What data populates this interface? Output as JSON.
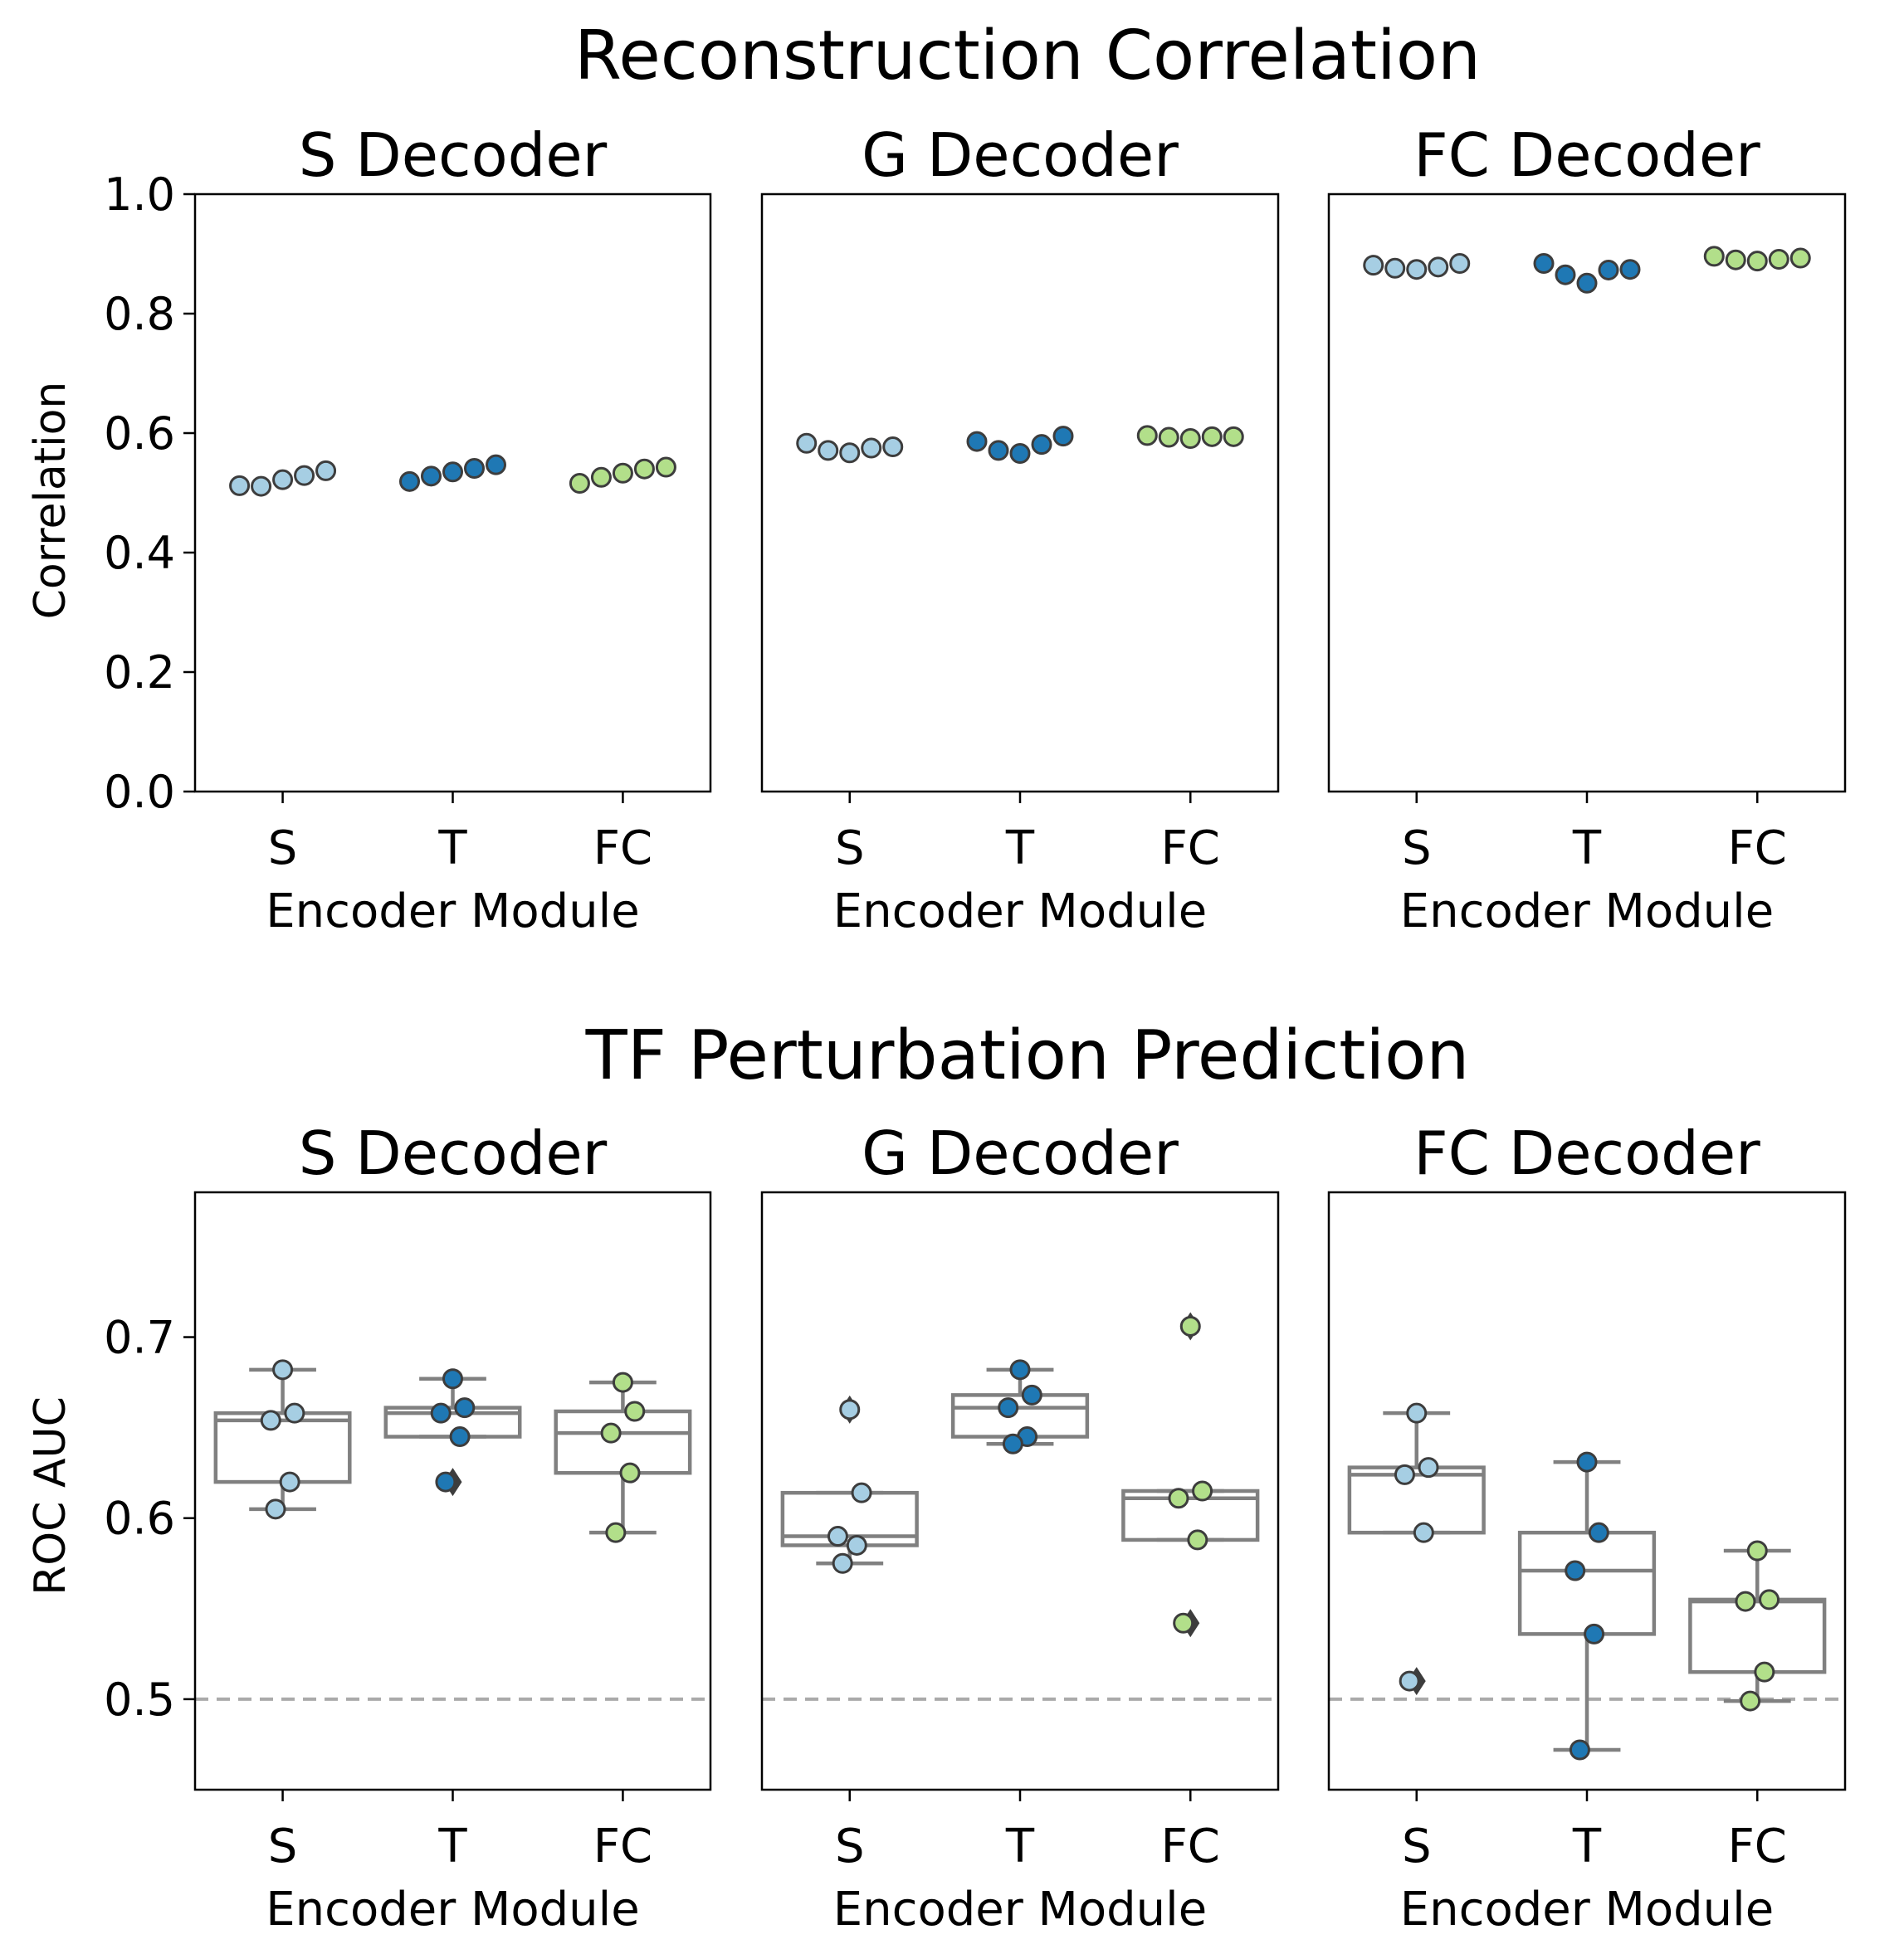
{
  "rows": [
    {
      "title": "Reconstruction Correlation",
      "ylabel": "Correlation",
      "ylim": [
        0,
        1
      ],
      "yticks": [
        "0.0",
        "0.2",
        "0.4",
        "0.6",
        "0.8",
        "1.0"
      ],
      "reference_line": null,
      "show_boxes": false
    },
    {
      "title": "TF Perturbation Prediction",
      "ylabel": "ROC AUC",
      "ylim": [
        0.45,
        0.78
      ],
      "yticks": [
        "0.5",
        "0.6",
        "0.7"
      ],
      "reference_line": 0.5,
      "show_boxes": true
    }
  ],
  "panel_titles": [
    "S Decoder",
    "G Decoder",
    "FC Decoder"
  ],
  "xlabel": "Encoder Module",
  "categories": [
    "S",
    "T",
    "FC"
  ],
  "colors": {
    "S": "#a6cee3",
    "T": "#1f78b4",
    "FC": "#b2df8a",
    "box": "#808080",
    "ref": "#aaaaaa"
  },
  "chart_data": [
    {
      "type": "scatter",
      "title": "Reconstruction Correlation",
      "subplots": [
        {
          "title": "S Decoder",
          "xlabel": "Encoder Module",
          "ylabel": "Correlation",
          "ylim": [
            0,
            1
          ],
          "categories": [
            "S",
            "T",
            "FC"
          ],
          "values": {
            "S": [
              0.512,
              0.511,
              0.522,
              0.529,
              0.537
            ],
            "T": [
              0.519,
              0.528,
              0.535,
              0.541,
              0.547
            ],
            "FC": [
              0.516,
              0.526,
              0.533,
              0.54,
              0.543
            ]
          }
        },
        {
          "title": "G Decoder",
          "xlabel": "Encoder Module",
          "ylabel": "",
          "ylim": [
            0,
            1
          ],
          "categories": [
            "S",
            "T",
            "FC"
          ],
          "values": {
            "S": [
              0.583,
              0.571,
              0.567,
              0.575,
              0.577
            ],
            "T": [
              0.586,
              0.571,
              0.566,
              0.581,
              0.595
            ],
            "FC": [
              0.596,
              0.593,
              0.591,
              0.594,
              0.594
            ]
          }
        },
        {
          "title": "FC Decoder",
          "xlabel": "Encoder Module",
          "ylabel": "",
          "ylim": [
            0,
            1
          ],
          "categories": [
            "S",
            "T",
            "FC"
          ],
          "values": {
            "S": [
              0.881,
              0.876,
              0.874,
              0.878,
              0.884
            ],
            "T": [
              0.884,
              0.865,
              0.851,
              0.873,
              0.874
            ],
            "FC": [
              0.896,
              0.89,
              0.888,
              0.891,
              0.893
            ]
          }
        }
      ]
    },
    {
      "type": "box",
      "title": "TF Perturbation Prediction",
      "reference_line": 0.5,
      "subplots": [
        {
          "title": "S Decoder",
          "xlabel": "Encoder Module",
          "ylabel": "ROC AUC",
          "ylim": [
            0.45,
            0.78
          ],
          "categories": [
            "S",
            "T",
            "FC"
          ],
          "values": {
            "S": [
              0.682,
              0.658,
              0.654,
              0.62,
              0.605
            ],
            "T": [
              0.677,
              0.661,
              0.658,
              0.645,
              0.62
            ],
            "FC": [
              0.675,
              0.659,
              0.647,
              0.625,
              0.592
            ]
          }
        },
        {
          "title": "G Decoder",
          "xlabel": "Encoder Module",
          "ylabel": "",
          "ylim": [
            0.45,
            0.78
          ],
          "categories": [
            "S",
            "T",
            "FC"
          ],
          "values": {
            "S": [
              0.66,
              0.614,
              0.59,
              0.585,
              0.575
            ],
            "T": [
              0.682,
              0.668,
              0.661,
              0.645,
              0.641
            ],
            "FC": [
              0.706,
              0.615,
              0.611,
              0.588,
              0.542
            ]
          }
        },
        {
          "title": "FC Decoder",
          "xlabel": "Encoder Module",
          "ylabel": "",
          "ylim": [
            0.45,
            0.78
          ],
          "categories": [
            "S",
            "T",
            "FC"
          ],
          "values": {
            "S": [
              0.658,
              0.628,
              0.624,
              0.592,
              0.51
            ],
            "T": [
              0.631,
              0.592,
              0.571,
              0.536,
              0.472
            ],
            "FC": [
              0.582,
              0.555,
              0.554,
              0.515,
              0.499
            ]
          }
        }
      ]
    }
  ]
}
